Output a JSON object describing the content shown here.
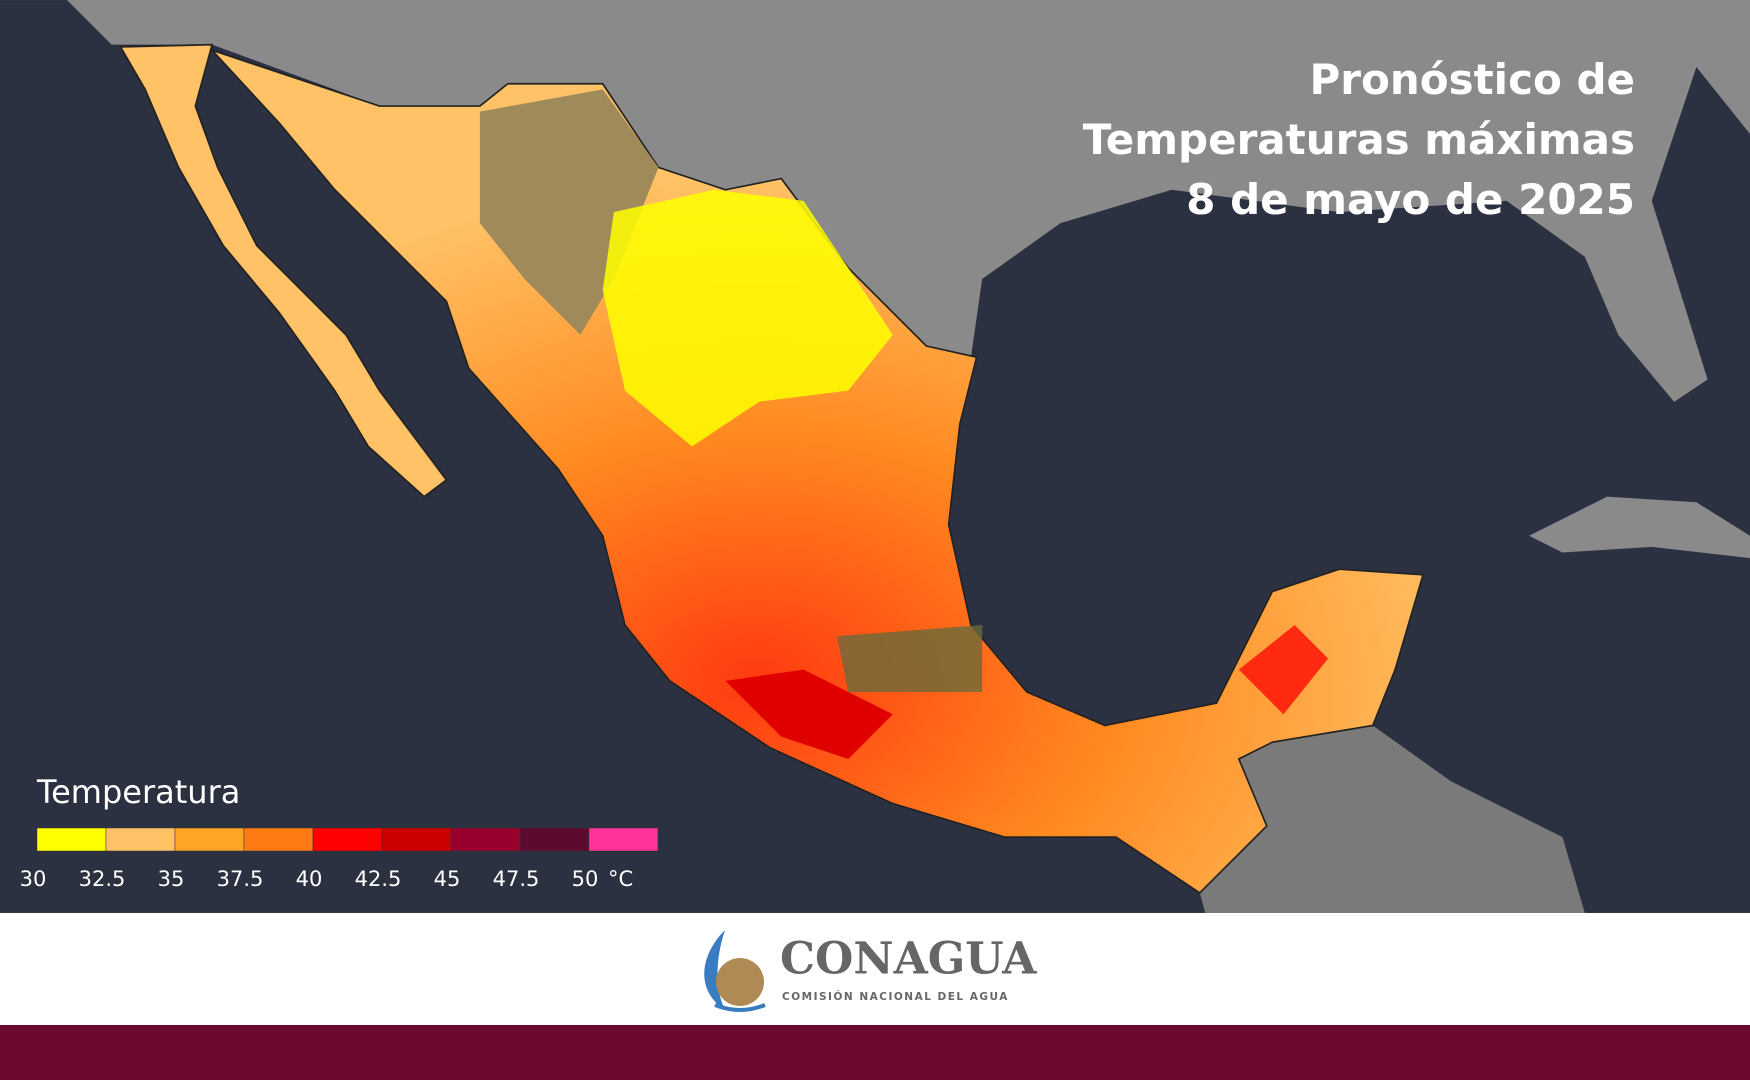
{
  "title": [
    "Pronóstico de",
    "Temperaturas máximas",
    "8 de mayo de 2025"
  ],
  "legend": {
    "title": "Temperatura",
    "ticks": [
      30,
      32.5,
      35,
      37.5,
      40,
      42.5,
      45,
      47.5,
      50
    ],
    "unit": "°C",
    "colors": [
      "#ffff00",
      "#ffc266",
      "#ffa526",
      "#ff7a12",
      "#ff0000",
      "#cc0000",
      "#99002e",
      "#5e0a30",
      "#ff3399"
    ]
  },
  "logo": {
    "name": "CONAGUA",
    "subtitle": "COMISIÓN NACIONAL DEL AGUA"
  }
}
